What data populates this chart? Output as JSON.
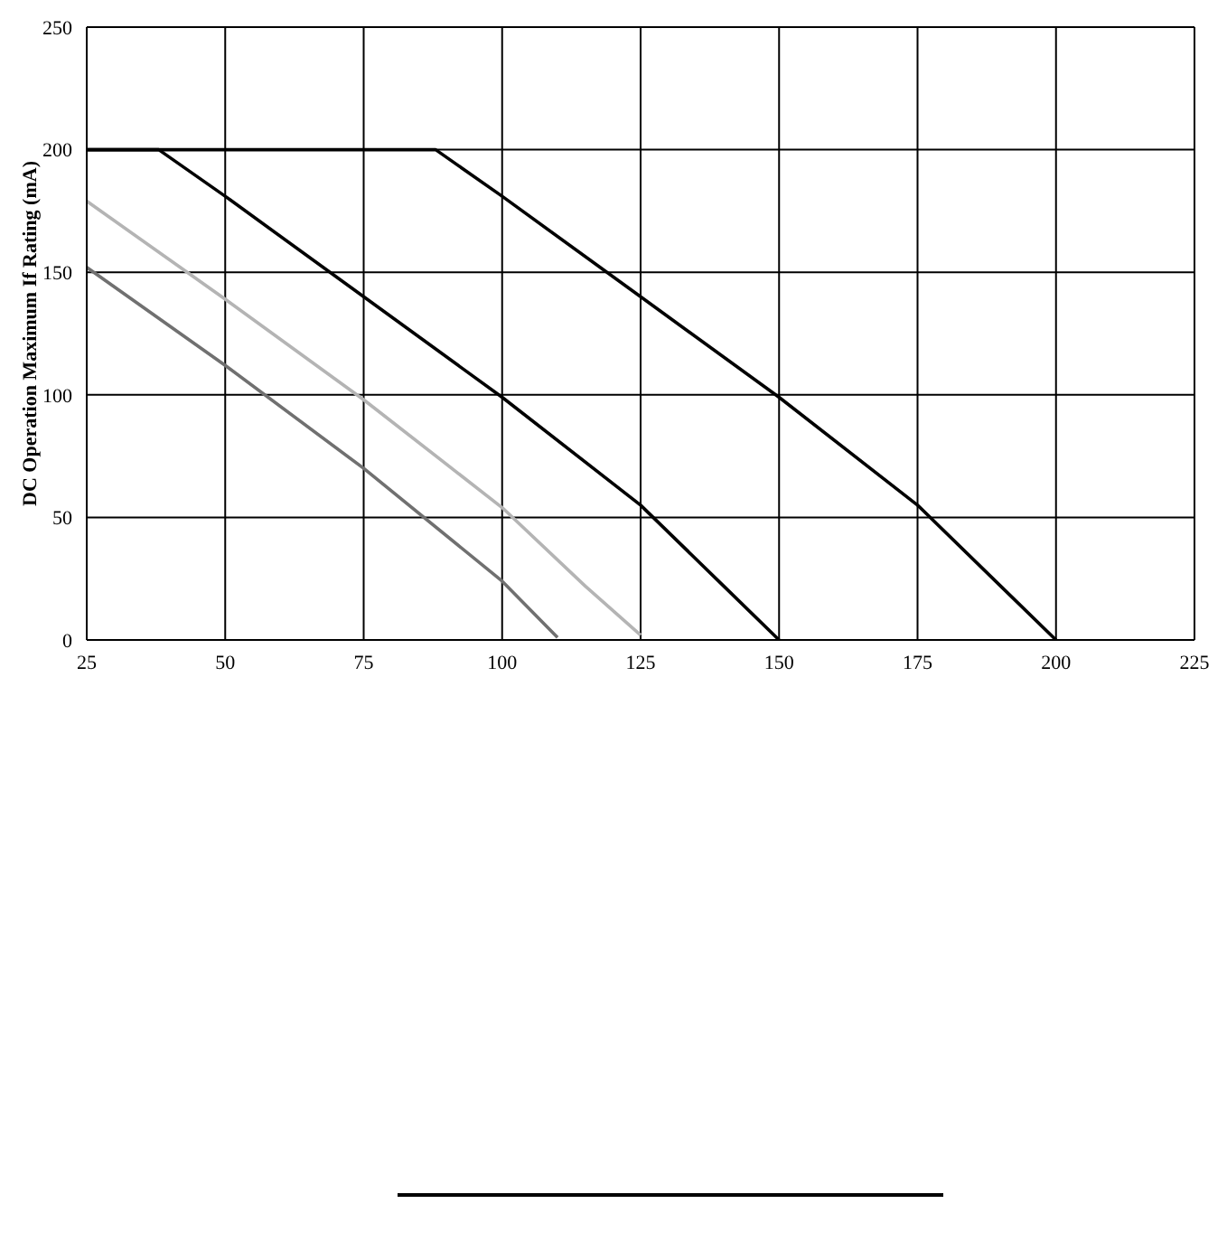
{
  "chart_data": {
    "type": "line",
    "ylabel": "DC Operation Maximum If Rating (mA)",
    "series": [
      {
        "color": "#000000",
        "x": [
          25,
          88,
          100,
          125,
          150,
          175,
          190,
          200
        ],
        "values": [
          200,
          200,
          181,
          140,
          99,
          55,
          22,
          0
        ]
      },
      {
        "color": "#000000",
        "x": [
          25,
          38,
          50,
          75,
          100,
          125,
          140,
          150
        ],
        "values": [
          200,
          200,
          181,
          140,
          99,
          55,
          22,
          0
        ]
      },
      {
        "color": "#b4b4b4",
        "x": [
          25,
          50,
          75,
          100,
          115,
          125
        ],
        "values": [
          179,
          139,
          98,
          54,
          22,
          2
        ]
      },
      {
        "color": "#707070",
        "x": [
          25,
          50,
          75,
          100,
          110
        ],
        "values": [
          152,
          112,
          70,
          24,
          1
        ]
      }
    ],
    "xlim": [
      25,
      225
    ],
    "xticks": [
      25,
      50,
      75,
      100,
      125,
      150,
      175,
      200,
      225
    ],
    "ylim": [
      0,
      250
    ],
    "yticks": [
      0,
      50,
      100,
      150,
      200,
      250
    ],
    "grid": true,
    "marker": "none",
    "line_style": "solid"
  }
}
